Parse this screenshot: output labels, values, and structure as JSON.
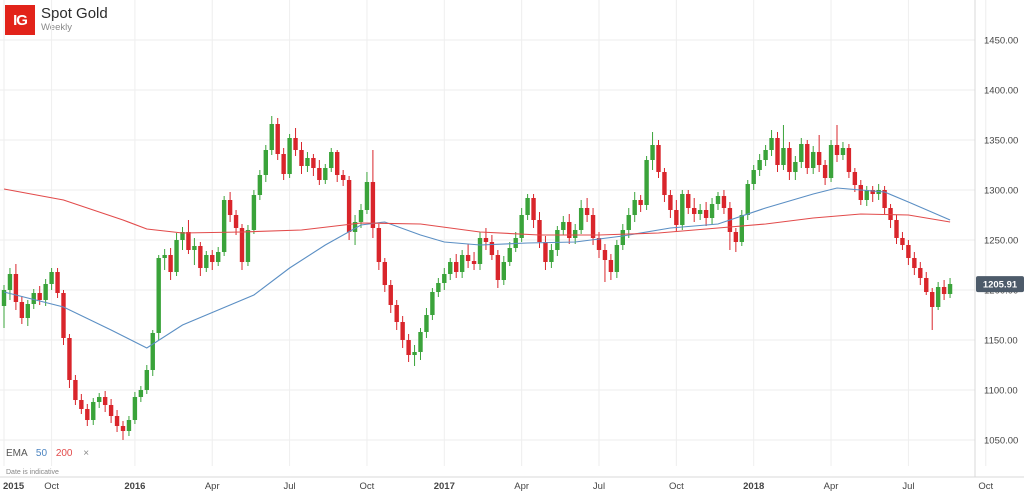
{
  "header": {
    "logo_text": "IG",
    "title": "Spot Gold",
    "subtitle": "Weekly"
  },
  "legend": {
    "label": "EMA",
    "ema_fast": "50",
    "ema_slow": "200",
    "close_symbol": "×"
  },
  "footer_note": "Date is indicative",
  "price_badge": "1205.91",
  "colors": {
    "up": "#3aa33a",
    "down": "#d9252b",
    "ema50": "#5b8fc4",
    "ema200": "#e24b4b",
    "grid": "#eeeeee",
    "badge": "#4d5b6a"
  },
  "chart_data": {
    "type": "candlestick",
    "title": "Spot Gold",
    "subtitle": "Weekly",
    "ylim": [
      1035,
      1480
    ],
    "y_ticks": [
      "1450.00",
      "1400.00",
      "1350.00",
      "1300.00",
      "1250.00",
      "1200.00",
      "1150.00",
      "1100.00",
      "1050.00"
    ],
    "y_tick_values": [
      1450,
      1400,
      1350,
      1300,
      1250,
      1200,
      1150,
      1100,
      1050
    ],
    "x_ticks": [
      "2015",
      "Oct",
      "2016",
      "Apr",
      "Jul",
      "Oct",
      "2017",
      "Apr",
      "Jul",
      "Oct",
      "2018",
      "Apr",
      "Jul",
      "Oct"
    ],
    "x_tick_weeks": [
      0,
      8,
      22,
      35,
      48,
      61,
      74,
      87,
      100,
      113,
      126,
      139,
      152,
      165
    ],
    "last_price": 1205.91,
    "series": [
      {
        "name": "EMA 50",
        "points": [
          [
            0,
            1198
          ],
          [
            10,
            1183
          ],
          [
            18,
            1160
          ],
          [
            24,
            1142
          ],
          [
            30,
            1165
          ],
          [
            36,
            1180
          ],
          [
            42,
            1195
          ],
          [
            48,
            1222
          ],
          [
            54,
            1245
          ],
          [
            60,
            1265
          ],
          [
            64,
            1268
          ],
          [
            70,
            1255
          ],
          [
            74,
            1248
          ],
          [
            80,
            1245
          ],
          [
            88,
            1247
          ],
          [
            96,
            1248
          ],
          [
            104,
            1254
          ],
          [
            112,
            1262
          ],
          [
            120,
            1266
          ],
          [
            128,
            1282
          ],
          [
            136,
            1296
          ],
          [
            140,
            1302
          ],
          [
            144,
            1300
          ],
          [
            148,
            1298
          ],
          [
            152,
            1288
          ],
          [
            159,
            1270
          ]
        ]
      },
      {
        "name": "EMA 200",
        "points": [
          [
            0,
            1301
          ],
          [
            10,
            1290
          ],
          [
            20,
            1270
          ],
          [
            24,
            1261
          ],
          [
            30,
            1257
          ],
          [
            40,
            1258
          ],
          [
            50,
            1260
          ],
          [
            60,
            1267
          ],
          [
            70,
            1266
          ],
          [
            80,
            1258
          ],
          [
            90,
            1255
          ],
          [
            100,
            1255
          ],
          [
            110,
            1257
          ],
          [
            120,
            1262
          ],
          [
            128,
            1266
          ],
          [
            136,
            1272
          ],
          [
            144,
            1276
          ],
          [
            152,
            1275
          ],
          [
            159,
            1268
          ]
        ]
      }
    ],
    "candles": [
      [
        1184,
        1200,
        1162,
        1205
      ],
      [
        1200,
        1216,
        1190,
        1222
      ],
      [
        1216,
        1188,
        1180,
        1226
      ],
      [
        1188,
        1172,
        1166,
        1194
      ],
      [
        1172,
        1186,
        1164,
        1190
      ],
      [
        1186,
        1197,
        1181,
        1201
      ],
      [
        1197,
        1190,
        1185,
        1204
      ],
      [
        1190,
        1206,
        1184,
        1211
      ],
      [
        1206,
        1218,
        1200,
        1222
      ],
      [
        1218,
        1197,
        1192,
        1222
      ],
      [
        1197,
        1152,
        1145,
        1200
      ],
      [
        1152,
        1110,
        1102,
        1156
      ],
      [
        1110,
        1090,
        1085,
        1115
      ],
      [
        1090,
        1081,
        1076,
        1096
      ],
      [
        1081,
        1070,
        1064,
        1086
      ],
      [
        1070,
        1088,
        1065,
        1092
      ],
      [
        1088,
        1093,
        1082,
        1097
      ],
      [
        1093,
        1085,
        1078,
        1099
      ],
      [
        1085,
        1074,
        1067,
        1091
      ],
      [
        1074,
        1064,
        1058,
        1080
      ],
      [
        1064,
        1059,
        1050,
        1069
      ],
      [
        1059,
        1070,
        1054,
        1074
      ],
      [
        1070,
        1093,
        1066,
        1098
      ],
      [
        1093,
        1100,
        1088,
        1104
      ],
      [
        1100,
        1120,
        1096,
        1125
      ],
      [
        1120,
        1157,
        1114,
        1160
      ],
      [
        1157,
        1232,
        1150,
        1235
      ],
      [
        1232,
        1235,
        1220,
        1241
      ],
      [
        1235,
        1218,
        1210,
        1242
      ],
      [
        1218,
        1250,
        1214,
        1257
      ],
      [
        1250,
        1258,
        1240,
        1263
      ],
      [
        1258,
        1240,
        1236,
        1270
      ],
      [
        1240,
        1244,
        1225,
        1252
      ],
      [
        1244,
        1222,
        1214,
        1248
      ],
      [
        1222,
        1235,
        1218,
        1239
      ],
      [
        1235,
        1228,
        1220,
        1240
      ],
      [
        1228,
        1238,
        1224,
        1243
      ],
      [
        1238,
        1290,
        1234,
        1294
      ],
      [
        1290,
        1275,
        1268,
        1298
      ],
      [
        1275,
        1262,
        1255,
        1280
      ],
      [
        1262,
        1228,
        1220,
        1266
      ],
      [
        1228,
        1260,
        1224,
        1265
      ],
      [
        1260,
        1295,
        1256,
        1300
      ],
      [
        1295,
        1315,
        1290,
        1320
      ],
      [
        1315,
        1340,
        1308,
        1345
      ],
      [
        1340,
        1366,
        1335,
        1374
      ],
      [
        1366,
        1336,
        1330,
        1372
      ],
      [
        1336,
        1316,
        1310,
        1342
      ],
      [
        1316,
        1352,
        1312,
        1356
      ],
      [
        1352,
        1340,
        1334,
        1362
      ],
      [
        1340,
        1324,
        1316,
        1348
      ],
      [
        1324,
        1332,
        1318,
        1338
      ],
      [
        1332,
        1322,
        1314,
        1336
      ],
      [
        1322,
        1310,
        1305,
        1330
      ],
      [
        1310,
        1322,
        1306,
        1326
      ],
      [
        1322,
        1338,
        1318,
        1342
      ],
      [
        1338,
        1315,
        1308,
        1340
      ],
      [
        1315,
        1310,
        1304,
        1320
      ],
      [
        1310,
        1258,
        1250,
        1314
      ],
      [
        1258,
        1268,
        1245,
        1275
      ],
      [
        1268,
        1280,
        1262,
        1286
      ],
      [
        1280,
        1308,
        1276,
        1318
      ],
      [
        1308,
        1262,
        1252,
        1340
      ],
      [
        1262,
        1228,
        1220,
        1266
      ],
      [
        1228,
        1205,
        1198,
        1232
      ],
      [
        1205,
        1185,
        1177,
        1210
      ],
      [
        1185,
        1168,
        1160,
        1190
      ],
      [
        1168,
        1150,
        1142,
        1174
      ],
      [
        1150,
        1135,
        1128,
        1156
      ],
      [
        1135,
        1138,
        1124,
        1145
      ],
      [
        1138,
        1158,
        1130,
        1162
      ],
      [
        1158,
        1175,
        1152,
        1182
      ],
      [
        1175,
        1198,
        1170,
        1202
      ],
      [
        1198,
        1207,
        1193,
        1212
      ],
      [
        1207,
        1216,
        1200,
        1222
      ],
      [
        1216,
        1228,
        1210,
        1232
      ],
      [
        1228,
        1218,
        1212,
        1236
      ],
      [
        1218,
        1235,
        1212,
        1240
      ],
      [
        1235,
        1229,
        1222,
        1246
      ],
      [
        1229,
        1226,
        1220,
        1238
      ],
      [
        1226,
        1252,
        1220,
        1258
      ],
      [
        1252,
        1248,
        1240,
        1262
      ],
      [
        1248,
        1235,
        1230,
        1255
      ],
      [
        1235,
        1210,
        1202,
        1240
      ],
      [
        1210,
        1228,
        1205,
        1234
      ],
      [
        1228,
        1242,
        1224,
        1248
      ],
      [
        1242,
        1252,
        1238,
        1258
      ],
      [
        1252,
        1275,
        1248,
        1282
      ],
      [
        1275,
        1292,
        1270,
        1296
      ],
      [
        1292,
        1270,
        1262,
        1296
      ],
      [
        1270,
        1248,
        1242,
        1278
      ],
      [
        1248,
        1228,
        1220,
        1254
      ],
      [
        1228,
        1240,
        1222,
        1246
      ],
      [
        1240,
        1260,
        1234,
        1264
      ],
      [
        1260,
        1268,
        1255,
        1274
      ],
      [
        1268,
        1252,
        1246,
        1276
      ],
      [
        1252,
        1260,
        1246,
        1266
      ],
      [
        1260,
        1282,
        1256,
        1290
      ],
      [
        1282,
        1275,
        1268,
        1292
      ],
      [
        1275,
        1252,
        1245,
        1282
      ],
      [
        1252,
        1240,
        1232,
        1258
      ],
      [
        1240,
        1230,
        1208,
        1246
      ],
      [
        1230,
        1218,
        1210,
        1236
      ],
      [
        1218,
        1245,
        1212,
        1250
      ],
      [
        1245,
        1260,
        1240,
        1266
      ],
      [
        1260,
        1275,
        1252,
        1282
      ],
      [
        1275,
        1290,
        1268,
        1298
      ],
      [
        1290,
        1285,
        1278,
        1295
      ],
      [
        1285,
        1330,
        1280,
        1334
      ],
      [
        1330,
        1345,
        1320,
        1358
      ],
      [
        1345,
        1318,
        1312,
        1350
      ],
      [
        1318,
        1295,
        1288,
        1322
      ],
      [
        1295,
        1280,
        1272,
        1300
      ],
      [
        1280,
        1265,
        1258,
        1290
      ],
      [
        1265,
        1296,
        1260,
        1300
      ],
      [
        1296,
        1282,
        1276,
        1300
      ],
      [
        1282,
        1276,
        1268,
        1292
      ],
      [
        1276,
        1280,
        1270,
        1286
      ],
      [
        1280,
        1272,
        1264,
        1288
      ],
      [
        1272,
        1286,
        1266,
        1292
      ],
      [
        1286,
        1294,
        1280,
        1298
      ],
      [
        1294,
        1282,
        1276,
        1300
      ],
      [
        1282,
        1258,
        1240,
        1288
      ],
      [
        1258,
        1248,
        1238,
        1262
      ],
      [
        1248,
        1275,
        1244,
        1280
      ],
      [
        1275,
        1306,
        1270,
        1310
      ],
      [
        1306,
        1320,
        1300,
        1325
      ],
      [
        1320,
        1330,
        1314,
        1336
      ],
      [
        1330,
        1340,
        1324,
        1345
      ],
      [
        1340,
        1352,
        1334,
        1360
      ],
      [
        1352,
        1325,
        1318,
        1358
      ],
      [
        1325,
        1342,
        1320,
        1365
      ],
      [
        1342,
        1318,
        1310,
        1348
      ],
      [
        1318,
        1328,
        1310,
        1334
      ],
      [
        1328,
        1346,
        1322,
        1352
      ],
      [
        1346,
        1322,
        1316,
        1350
      ],
      [
        1322,
        1338,
        1316,
        1344
      ],
      [
        1338,
        1325,
        1318,
        1355
      ],
      [
        1325,
        1312,
        1305,
        1330
      ],
      [
        1312,
        1345,
        1308,
        1350
      ],
      [
        1345,
        1335,
        1328,
        1365
      ],
      [
        1335,
        1342,
        1330,
        1348
      ],
      [
        1342,
        1318,
        1312,
        1346
      ],
      [
        1318,
        1305,
        1298,
        1322
      ],
      [
        1305,
        1290,
        1285,
        1310
      ],
      [
        1290,
        1300,
        1284,
        1304
      ],
      [
        1300,
        1296,
        1288,
        1304
      ],
      [
        1296,
        1300,
        1290,
        1306
      ],
      [
        1300,
        1282,
        1275,
        1304
      ],
      [
        1282,
        1270,
        1262,
        1286
      ],
      [
        1270,
        1252,
        1246,
        1275
      ],
      [
        1252,
        1245,
        1240,
        1258
      ],
      [
        1245,
        1232,
        1225,
        1250
      ],
      [
        1232,
        1222,
        1215,
        1238
      ],
      [
        1222,
        1212,
        1205,
        1228
      ],
      [
        1212,
        1198,
        1195,
        1218
      ],
      [
        1198,
        1183,
        1160,
        1202
      ],
      [
        1183,
        1203,
        1180,
        1208
      ],
      [
        1203,
        1196,
        1190,
        1210
      ],
      [
        1196,
        1206,
        1192,
        1212
      ]
    ]
  }
}
